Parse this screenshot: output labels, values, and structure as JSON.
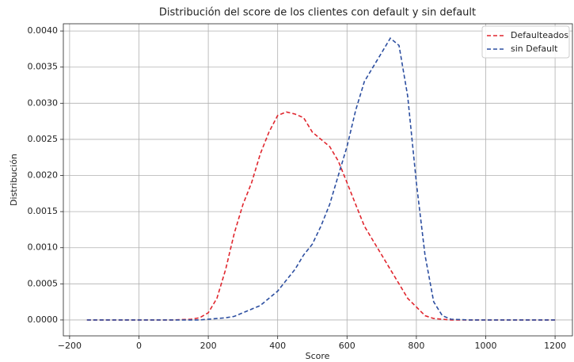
{
  "chart_data": {
    "type": "line",
    "title": "Distribución del score de los clientes con default y sin default",
    "x_label": "Score",
    "y_label": "Distribución",
    "x": [
      -150,
      100,
      150,
      175,
      200,
      225,
      250,
      275,
      300,
      325,
      350,
      375,
      400,
      425,
      450,
      475,
      500,
      525,
      550,
      575,
      600,
      625,
      650,
      675,
      700,
      725,
      750,
      775,
      800,
      825,
      850,
      875,
      900,
      950,
      1200
    ],
    "series": [
      {
        "name": "Defaulteados",
        "color": "#e0262e",
        "values": [
          0,
          0,
          1e-05,
          3e-05,
          0.0001,
          0.0003,
          0.0007,
          0.0012,
          0.0016,
          0.0019,
          0.0023,
          0.0026,
          0.00283,
          0.00288,
          0.00285,
          0.0028,
          0.0026,
          0.0025,
          0.0024,
          0.0022,
          0.0019,
          0.0016,
          0.0013,
          0.0011,
          0.0009,
          0.0007,
          0.0005,
          0.0003,
          0.00018,
          6e-05,
          2e-05,
          1e-05,
          0,
          0,
          0
        ]
      },
      {
        "name": "sin Default",
        "color": "#2c4ea0",
        "values": [
          0,
          0,
          0,
          0,
          1e-05,
          2e-05,
          3e-05,
          5e-05,
          0.0001,
          0.00015,
          0.0002,
          0.0003,
          0.0004,
          0.00055,
          0.0007,
          0.0009,
          0.00105,
          0.0013,
          0.0016,
          0.002,
          0.0024,
          0.0029,
          0.0033,
          0.0035,
          0.0037,
          0.0039,
          0.0038,
          0.0031,
          0.0019,
          0.0009,
          0.00025,
          6e-05,
          1e-05,
          0,
          0
        ]
      }
    ],
    "xlim": [
      -218,
      1250
    ],
    "ylim": [
      -0.00022,
      0.0041
    ],
    "xticks": [
      {
        "value": -200,
        "label": "−200"
      },
      0,
      200,
      400,
      600,
      800,
      1000,
      1200
    ],
    "yticks": [
      {
        "value": 0,
        "label": "0.0000"
      },
      {
        "value": 0.0005,
        "label": "0.0005"
      },
      {
        "value": 0.001,
        "label": "0.0010"
      },
      {
        "value": 0.0015,
        "label": "0.0015"
      },
      {
        "value": 0.002,
        "label": "0.0020"
      },
      {
        "value": 0.0025,
        "label": "0.0025"
      },
      {
        "value": 0.003,
        "label": "0.0030"
      },
      {
        "value": 0.0035,
        "label": "0.0035"
      },
      {
        "value": 0.004,
        "label": "0.0040"
      }
    ],
    "grid": true,
    "legend": "upper right"
  }
}
